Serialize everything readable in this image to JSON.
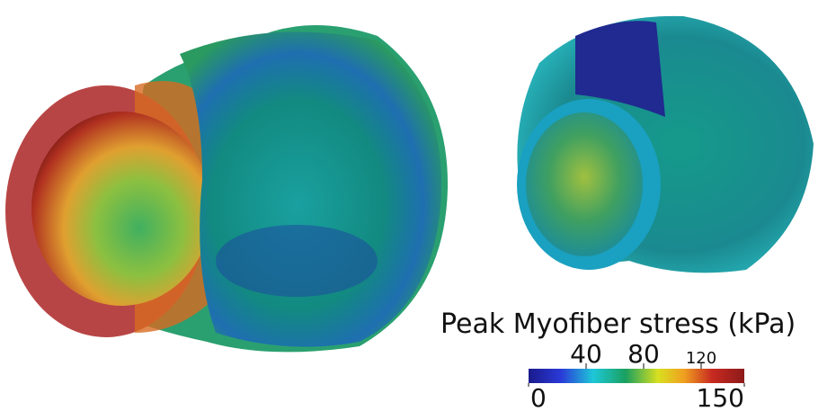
{
  "colorbar": {
    "title": "Peak Myofiber stress (kPa)",
    "range": [
      0,
      150
    ],
    "upper_ticks": [
      40,
      80,
      120
    ],
    "lower_ticks": [
      0,
      150
    ]
  }
}
